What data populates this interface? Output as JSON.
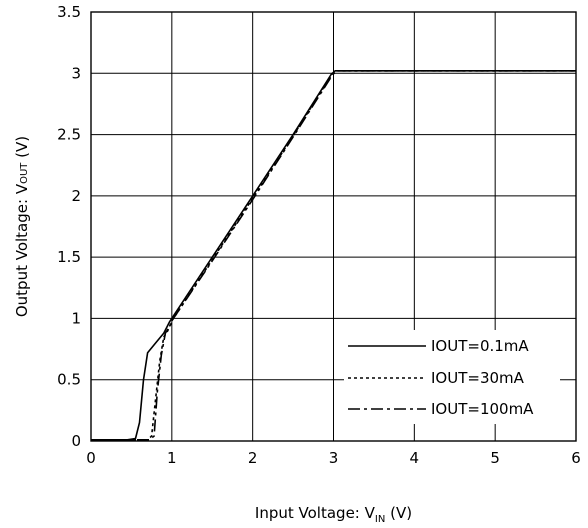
{
  "chart_data": {
    "type": "line",
    "xlabel": {
      "prefix": "Input Voltage: V",
      "sub": "IN",
      "suffix": " (V)"
    },
    "ylabel": {
      "prefix": "Output Voltage: V",
      "sub": "OUT",
      "suffix": " (V)"
    },
    "xlim": [
      0,
      6
    ],
    "ylim": [
      0,
      3.5
    ],
    "xticks": [
      "0",
      "1",
      "2",
      "3",
      "4",
      "5",
      "6"
    ],
    "yticks": [
      "0",
      "0.5",
      "1",
      "1.5",
      "2",
      "2.5",
      "3",
      "3.5"
    ],
    "grid": true,
    "legend_position": "bottom-right",
    "series": [
      {
        "name": "IOUT=0.1mA",
        "style": "solid",
        "points": [
          [
            0,
            0.01
          ],
          [
            0.45,
            0.01
          ],
          [
            0.55,
            0.02
          ],
          [
            0.6,
            0.15
          ],
          [
            0.65,
            0.5
          ],
          [
            0.7,
            0.72
          ],
          [
            0.8,
            0.8
          ],
          [
            0.9,
            0.88
          ],
          [
            0.97,
            0.97
          ],
          [
            1.5,
            1.5
          ],
          [
            2,
            2.0
          ],
          [
            2.5,
            2.5
          ],
          [
            2.97,
            2.99
          ],
          [
            3.02,
            3.02
          ],
          [
            6,
            3.02
          ]
        ]
      },
      {
        "name": "IOUT=30mA",
        "style": "dotted",
        "points": [
          [
            0,
            0.01
          ],
          [
            0.7,
            0.01
          ],
          [
            0.75,
            0.04
          ],
          [
            0.8,
            0.35
          ],
          [
            0.85,
            0.65
          ],
          [
            0.9,
            0.85
          ],
          [
            0.95,
            0.9
          ],
          [
            1.0,
            0.98
          ],
          [
            1.5,
            1.48
          ],
          [
            2,
            1.98
          ],
          [
            2.5,
            2.49
          ],
          [
            2.98,
            2.99
          ],
          [
            3.03,
            3.02
          ],
          [
            6,
            3.02
          ]
        ]
      },
      {
        "name": "IOUT=100mA",
        "style": "dashdot",
        "points": [
          [
            0,
            0.01
          ],
          [
            0.72,
            0.01
          ],
          [
            0.78,
            0.04
          ],
          [
            0.82,
            0.4
          ],
          [
            0.87,
            0.7
          ],
          [
            0.92,
            0.88
          ],
          [
            0.98,
            0.94
          ],
          [
            1.02,
            1.0
          ],
          [
            1.5,
            1.47
          ],
          [
            2,
            1.97
          ],
          [
            2.5,
            2.48
          ],
          [
            2.99,
            2.99
          ],
          [
            3.05,
            3.02
          ],
          [
            6,
            3.02
          ]
        ]
      }
    ]
  }
}
